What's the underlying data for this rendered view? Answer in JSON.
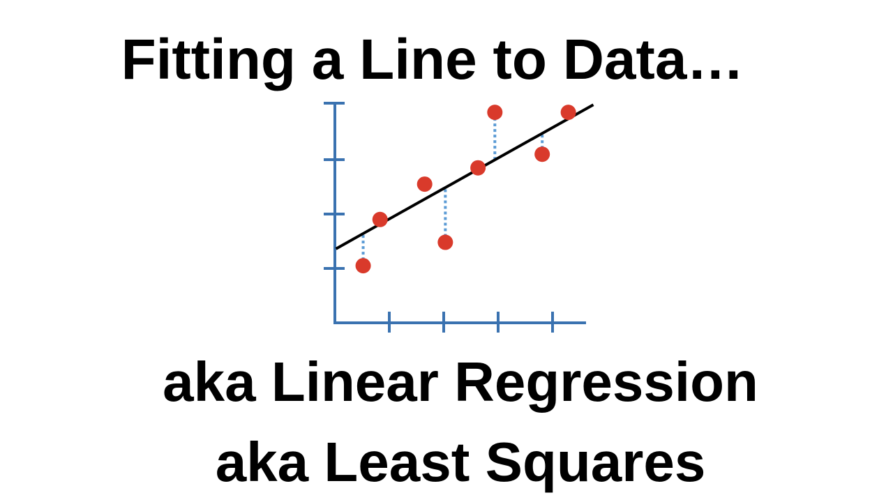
{
  "slide": {
    "title": "Fitting a Line to Data…",
    "subtitle_1": "aka Linear Regression",
    "subtitle_2": "aka Least Squares"
  },
  "colors": {
    "axis": "#3a72b0",
    "point": "#d93a2b",
    "fit_line": "#000000",
    "residual": "#5b9bd5"
  },
  "chart_data": {
    "type": "scatter",
    "title": "",
    "xlabel": "",
    "ylabel": "",
    "xlim": [
      0,
      4.5
    ],
    "ylim": [
      0,
      4
    ],
    "x_ticks": [
      1,
      2,
      3,
      4
    ],
    "y_ticks": [
      1,
      2,
      3,
      4
    ],
    "grid": false,
    "points": [
      {
        "x": 0.52,
        "y": 1.05
      },
      {
        "x": 0.83,
        "y": 1.9
      },
      {
        "x": 1.65,
        "y": 2.55
      },
      {
        "x": 2.03,
        "y": 1.48
      },
      {
        "x": 2.63,
        "y": 2.85
      },
      {
        "x": 2.94,
        "y": 3.87
      },
      {
        "x": 3.81,
        "y": 3.1
      },
      {
        "x": 4.29,
        "y": 3.87
      }
    ],
    "fit_line": {
      "slope": 0.56,
      "intercept": 1.35
    },
    "residuals_shown": [
      0,
      3,
      5,
      6
    ]
  }
}
